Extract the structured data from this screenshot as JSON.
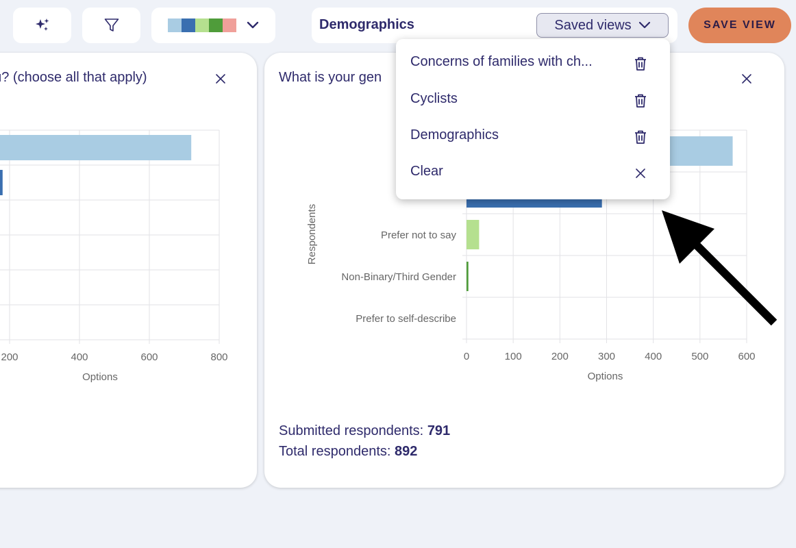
{
  "toolbar": {
    "ai_icon": "sparkles-icon",
    "filter_icon": "filter-icon",
    "palette_colors": [
      "#a9cce3",
      "#3a6fb0",
      "#b5e08f",
      "#4f9c3a",
      "#f0a09a"
    ],
    "palette_chevron_icon": "chevron-down-icon"
  },
  "view_bar": {
    "current_view": "Demographics",
    "saved_views_label": "Saved views"
  },
  "save_view_label": "SAVE VIEW",
  "saved_views_menu": {
    "items": [
      {
        "label": "Concerns of families with ch...",
        "action_icon": "trash-icon"
      },
      {
        "label": "Cyclists",
        "action_icon": "trash-icon"
      },
      {
        "label": "Demographics",
        "action_icon": "trash-icon"
      },
      {
        "label": "Clear",
        "action_icon": "close-icon"
      }
    ]
  },
  "left_card": {
    "title": "you? (choose all that apply)",
    "chart_data": {
      "type": "bar",
      "orientation": "horizontal",
      "xlabel": "Options",
      "x_ticks": [
        "200",
        "400",
        "600",
        "800"
      ],
      "xlim": [
        0,
        800
      ],
      "values": [
        720,
        180
      ]
    }
  },
  "right_card": {
    "title": "What is your gen",
    "submitted_label": "Submitted respondents:",
    "submitted_value": "791",
    "total_label": "Total respondents:",
    "total_value": "892",
    "chart_data": {
      "type": "bar",
      "orientation": "horizontal",
      "xlabel": "Options",
      "ylabel": "Respondents",
      "xlim": [
        0,
        600
      ],
      "x_ticks": [
        "0",
        "100",
        "200",
        "300",
        "400",
        "500",
        "600"
      ],
      "categories": [
        "",
        "",
        "Prefer not to say",
        "Non-Binary/Third Gender",
        "Prefer to self-describe"
      ],
      "values": [
        570,
        290,
        27,
        4,
        0
      ],
      "colors": [
        "#a9cce3",
        "#3a6fb0",
        "#b5e08f",
        "#4f9c3a",
        "#f0a09a"
      ]
    }
  }
}
